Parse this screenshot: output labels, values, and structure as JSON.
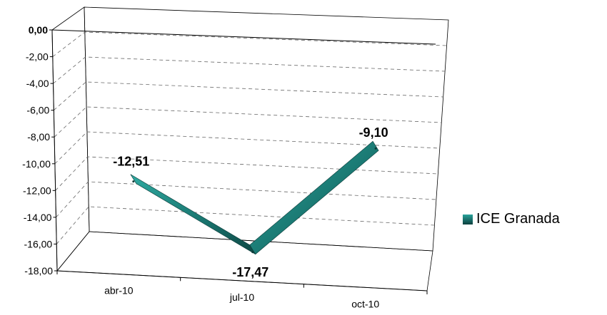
{
  "chart_data": {
    "type": "line",
    "style": "3d-ribbon",
    "categories": [
      "abr-10",
      "jul-10",
      "oct-10"
    ],
    "series": [
      {
        "name": "ICE Granada",
        "values": [
          -12.51,
          -17.47,
          -9.1
        ],
        "color": "#1f8a84"
      }
    ],
    "data_labels": [
      "-12,51",
      "-17,47",
      "-9,10"
    ],
    "y_ticks": [
      "0,00",
      "-2,00",
      "-4,00",
      "-6,00",
      "-8,00",
      "-10,00",
      "-12,00",
      "-14,00",
      "-16,00",
      "-18,00"
    ],
    "ylim": [
      -18,
      0
    ],
    "grid": true,
    "legend_position": "right"
  }
}
